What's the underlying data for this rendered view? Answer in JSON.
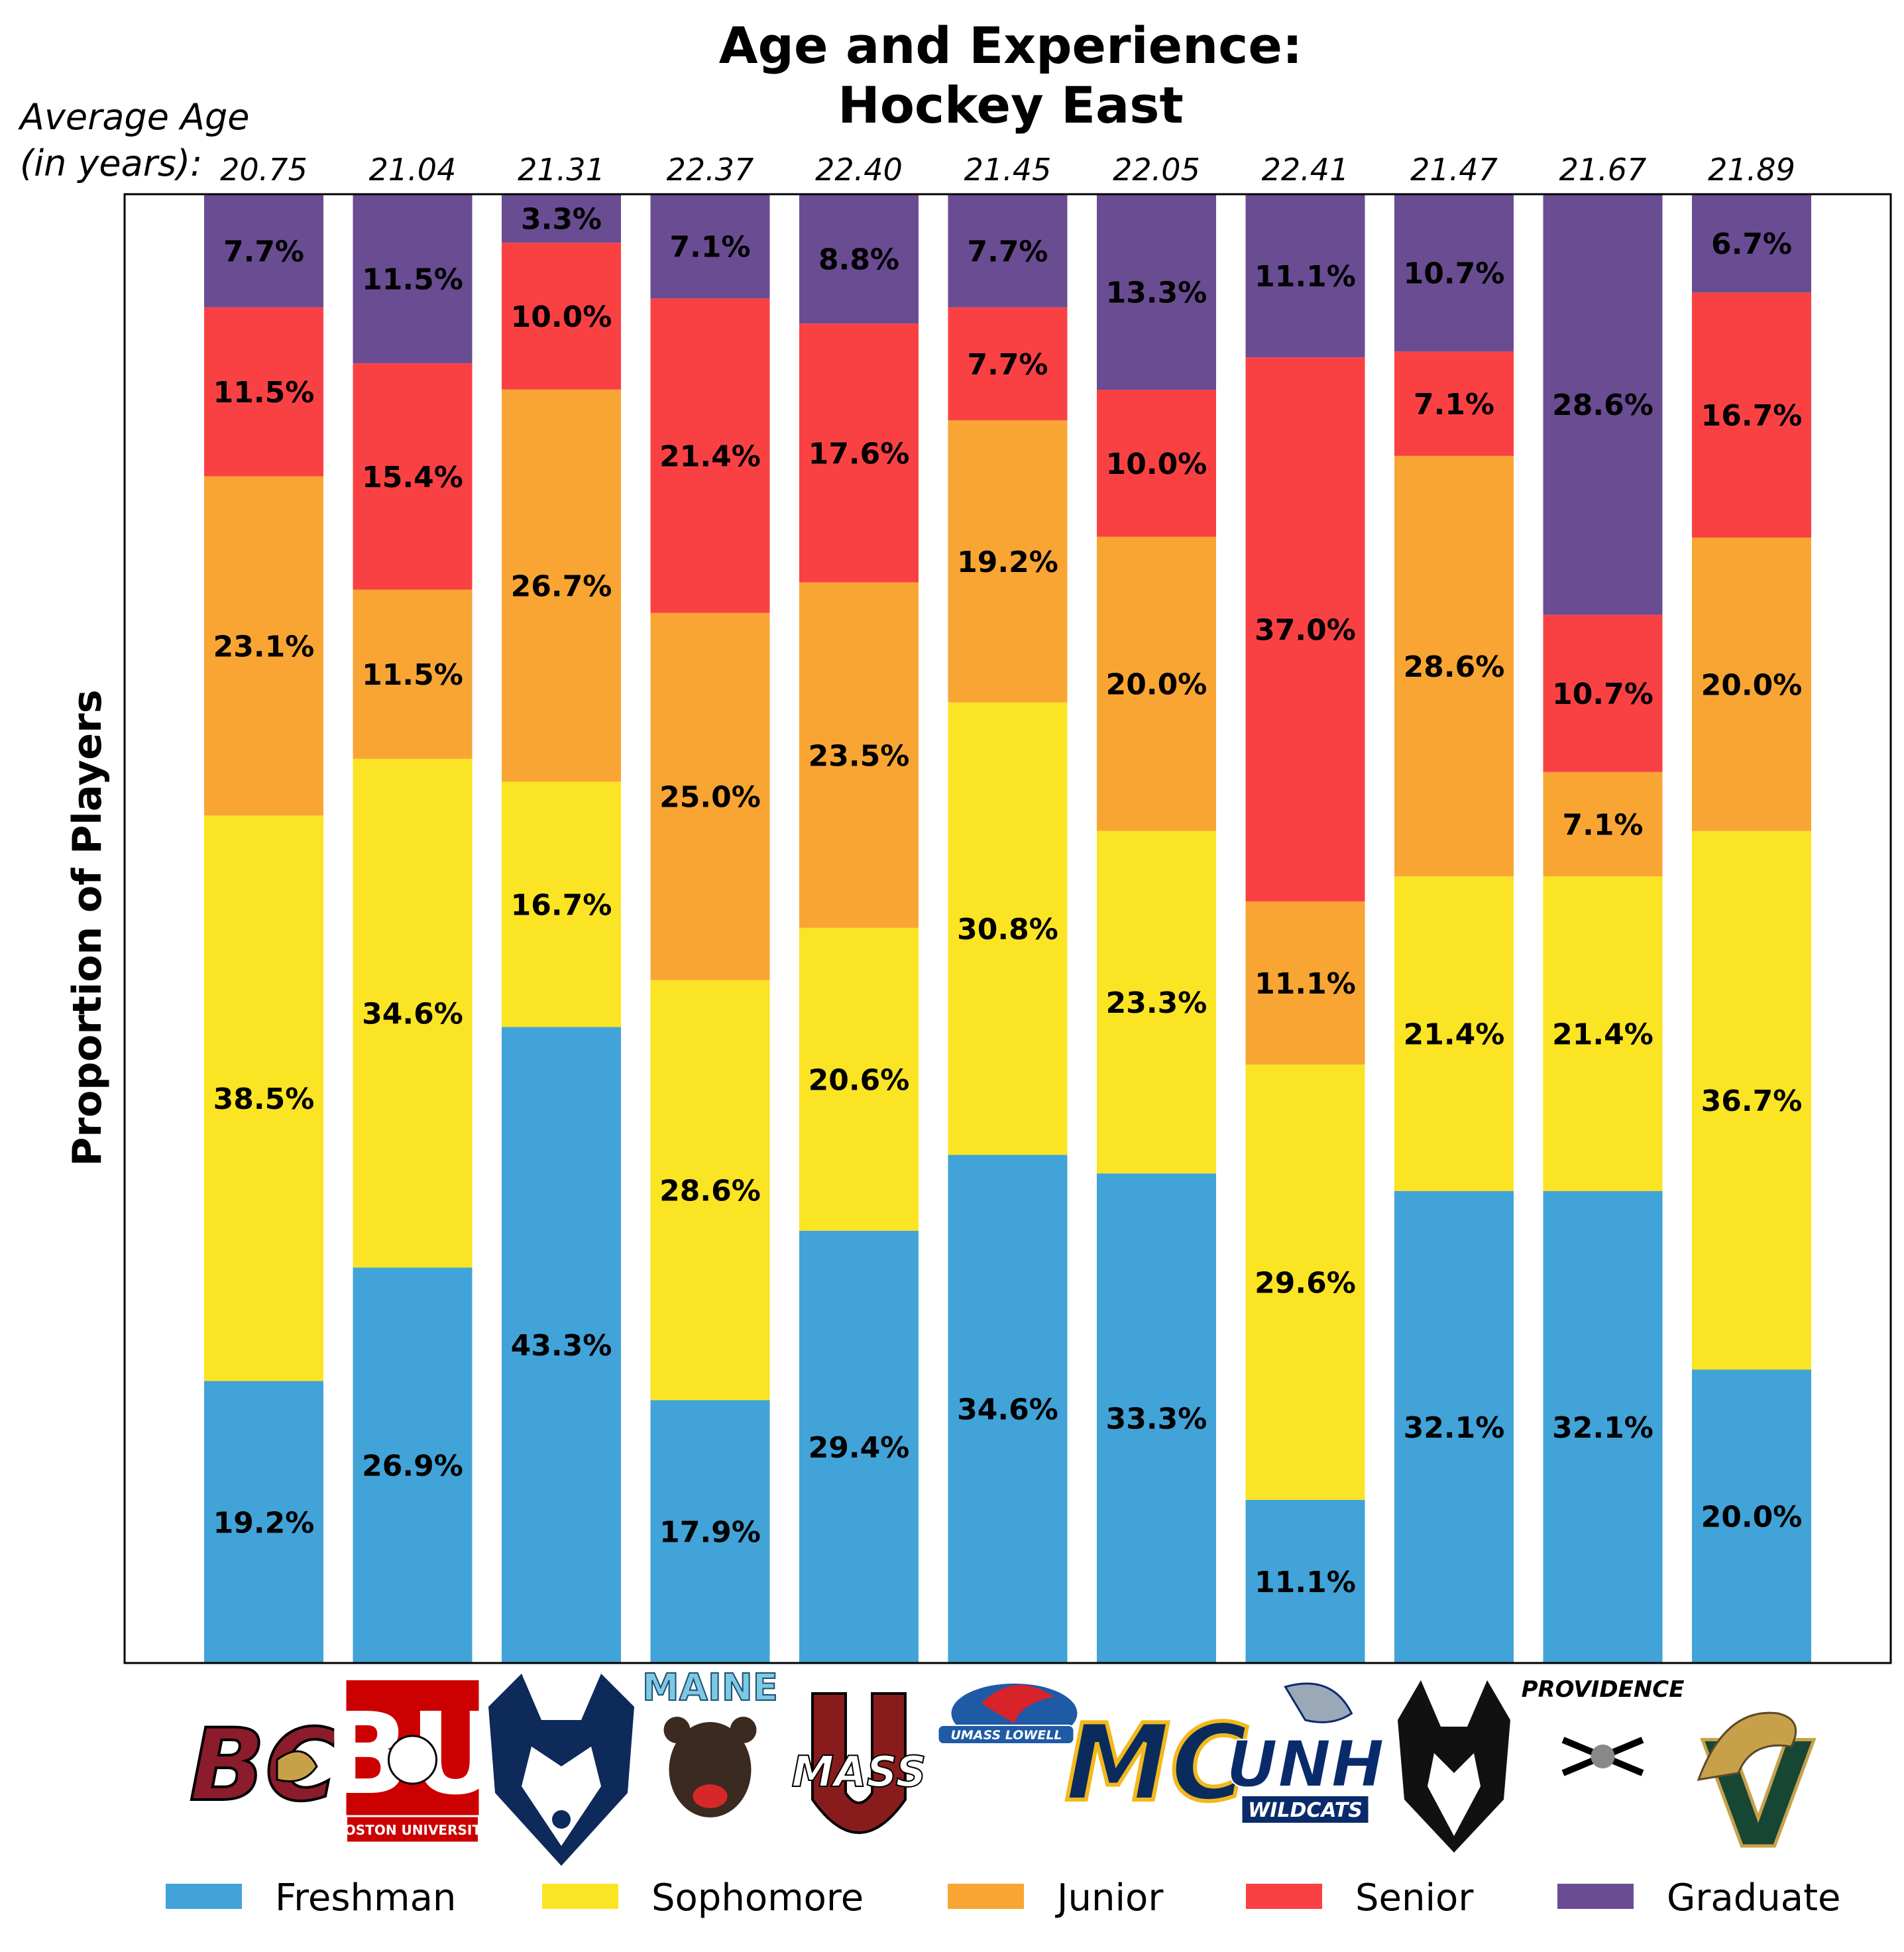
{
  "chart_data": {
    "type": "bar",
    "stacked": true,
    "title": "Age and Experience:",
    "subtitle": "Hockey East",
    "ylabel": "Proportion of Players",
    "ylim": [
      0,
      100
    ],
    "avg_age_label_line1": "Average Age",
    "avg_age_label_line2": "(in years):",
    "teams": [
      "BC",
      "BU",
      "UConn",
      "Maine",
      "UMass",
      "UMass Lowell",
      "Merrimack",
      "UNH",
      "Northeastern",
      "Providence",
      "Vermont"
    ],
    "average_age": [
      "20.75",
      "21.04",
      "21.31",
      "22.37",
      "22.40",
      "21.45",
      "22.05",
      "22.41",
      "21.47",
      "21.67",
      "21.89"
    ],
    "series": [
      {
        "name": "Freshman",
        "color": "#41a3d8",
        "values": [
          19.2,
          26.9,
          43.3,
          17.9,
          29.4,
          34.6,
          33.3,
          11.1,
          32.1,
          32.1,
          20.0
        ],
        "labels": [
          "19.2%",
          "26.9%",
          "43.3%",
          "17.9%",
          "29.4%",
          "34.6%",
          "33.3%",
          "11.1%",
          "32.1%",
          "32.1%",
          "20.0%"
        ]
      },
      {
        "name": "Sophomore",
        "color": "#fbe423",
        "values": [
          38.5,
          34.6,
          16.7,
          28.6,
          20.6,
          30.8,
          23.3,
          29.6,
          21.4,
          21.4,
          36.7
        ],
        "labels": [
          "38.5%",
          "34.6%",
          "16.7%",
          "28.6%",
          "20.6%",
          "30.8%",
          "23.3%",
          "29.6%",
          "21.4%",
          "21.4%",
          "36.7%"
        ]
      },
      {
        "name": "Junior",
        "color": "#f9a534",
        "values": [
          23.1,
          11.5,
          26.7,
          25.0,
          23.5,
          19.2,
          20.0,
          11.1,
          28.6,
          7.1,
          20.0
        ],
        "labels": [
          "23.1%",
          "11.5%",
          "26.7%",
          "25.0%",
          "23.5%",
          "19.2%",
          "20.0%",
          "11.1%",
          "28.6%",
          "7.1%",
          "20.0%"
        ]
      },
      {
        "name": "Senior",
        "color": "#f94144",
        "values": [
          11.5,
          15.4,
          10.0,
          21.4,
          17.6,
          7.7,
          10.0,
          37.0,
          7.1,
          10.7,
          16.7
        ],
        "labels": [
          "11.5%",
          "15.4%",
          "10.0%",
          "21.4%",
          "17.6%",
          "7.7%",
          "10.0%",
          "37.0%",
          "7.1%",
          "10.7%",
          "16.7%"
        ]
      },
      {
        "name": "Graduate",
        "color": "#6a4c93",
        "values": [
          7.7,
          11.5,
          3.3,
          7.1,
          8.8,
          7.7,
          13.3,
          11.1,
          10.7,
          28.6,
          6.7
        ],
        "labels": [
          "7.7%",
          "11.5%",
          "3.3%",
          "7.1%",
          "8.8%",
          "7.7%",
          "13.3%",
          "11.1%",
          "10.7%",
          "28.6%",
          "6.7%"
        ]
      }
    ],
    "legend_position": "bottom",
    "grid": false
  },
  "logos": [
    {
      "team": "BC",
      "text": "BC",
      "color": "#8a1c2b",
      "accent": "#c9a04a"
    },
    {
      "team": "BU",
      "text": "BU",
      "subtext": "BOSTON UNIVERSITY",
      "color": "#cc0000",
      "accent": "#ffffff"
    },
    {
      "team": "UConn",
      "color": "#0e2a5a",
      "accent": "#ffffff"
    },
    {
      "team": "Maine",
      "text": "MAINE",
      "color": "#7ec8e3",
      "accent": "#3a2a20"
    },
    {
      "team": "UMass",
      "text": "MASS",
      "color": "#881c1c",
      "accent": "#ffffff"
    },
    {
      "team": "UMass Lowell",
      "text": "UMASS LOWELL",
      "color": "#1f5aa6",
      "accent": "#d8232a"
    },
    {
      "team": "Merrimack",
      "text": "MC",
      "color": "#0a2b5c",
      "accent": "#f2b81d"
    },
    {
      "team": "UNH",
      "text": "UNH",
      "subtext": "WILDCATS",
      "color": "#0a2b6b",
      "accent": "#9aa8b8"
    },
    {
      "team": "Northeastern",
      "color": "#111111",
      "accent": "#ffffff"
    },
    {
      "team": "Providence",
      "text": "PROVIDENCE",
      "color": "#000000",
      "accent": "#888888"
    },
    {
      "team": "Vermont",
      "text": "V",
      "color": "#154734",
      "accent": "#c9a04a"
    }
  ]
}
